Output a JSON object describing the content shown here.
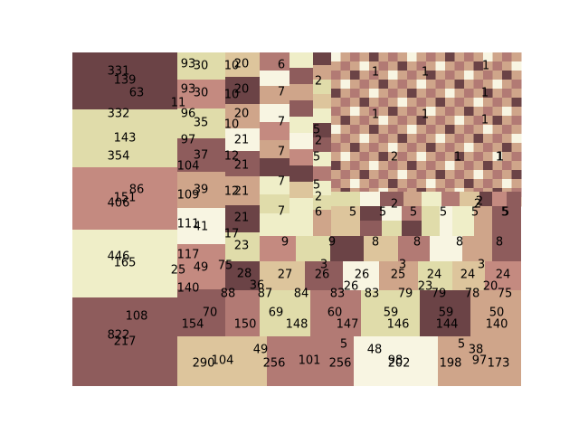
{
  "chart_data": {
    "type": "treemap",
    "title": "",
    "xlabel": "",
    "ylabel": "",
    "grid": false,
    "legend": "none",
    "palette": [
      "#6b4346",
      "#8e5c5c",
      "#c48a80",
      "#e0dcaa",
      "#efeec8",
      "#f8f5e2",
      "#ddc59c",
      "#cfa58a",
      "#b27a74"
    ],
    "labels": [
      "331",
      "139",
      "63",
      "332",
      "143",
      "354",
      "86",
      "151",
      "406",
      "446",
      "165",
      "108",
      "822",
      "217",
      "93",
      "30",
      "10",
      "20",
      "93",
      "30",
      "10",
      "20",
      "11",
      "96",
      "35",
      "10",
      "20",
      "97",
      "21",
      "37",
      "12",
      "21",
      "104",
      "39",
      "12",
      "21",
      "109",
      "21",
      "111",
      "41",
      "17",
      "23",
      "117",
      "49",
      "75",
      "25",
      "28",
      "36",
      "140",
      "88",
      "87",
      "6",
      "7",
      "2",
      "7",
      "7",
      "5",
      "2",
      "7",
      "5",
      "5",
      "2",
      "7",
      "6",
      "5",
      "5",
      "1",
      "1",
      "1",
      "1",
      "1",
      "1",
      "1",
      "1",
      "2",
      "1",
      "1",
      "2",
      "2",
      "2",
      "5",
      "5",
      "5",
      "5",
      "5",
      "9",
      "9",
      "8",
      "8",
      "8",
      "8",
      "27",
      "26",
      "26",
      "3",
      "26",
      "25",
      "3",
      "24",
      "24",
      "3",
      "24",
      "23",
      "20",
      "84",
      "83",
      "83",
      "79",
      "79",
      "78",
      "75",
      "154",
      "70",
      "150",
      "69",
      "148",
      "60",
      "147",
      "59",
      "146",
      "59",
      "144",
      "50",
      "140",
      "290",
      "104",
      "49",
      "256",
      "101",
      "5",
      "256",
      "48",
      "98",
      "202",
      "5",
      "38",
      "198",
      "97",
      "173"
    ]
  }
}
